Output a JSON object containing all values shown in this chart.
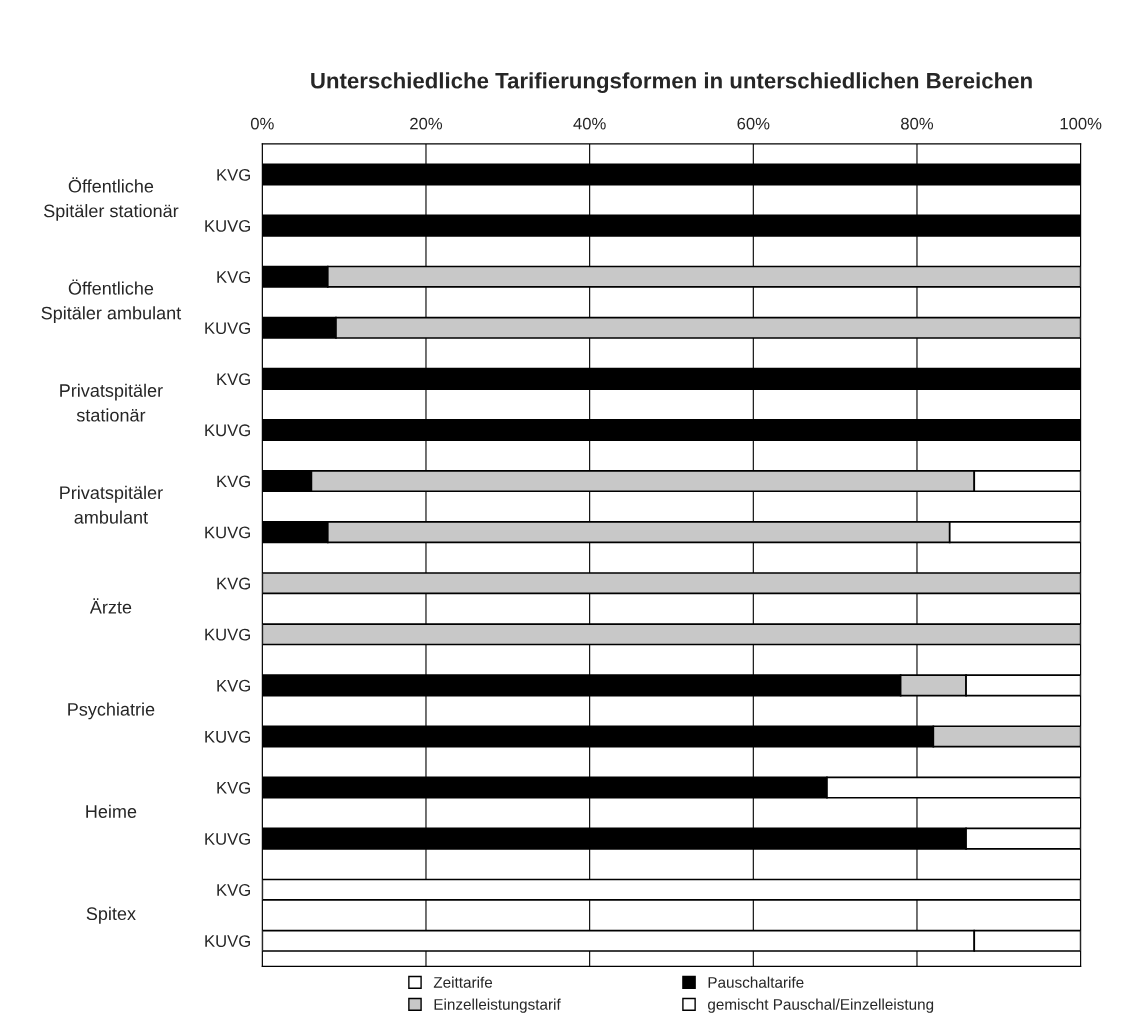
{
  "chart_data": {
    "type": "bar",
    "orientation": "horizontal",
    "stacked": true,
    "title": "Unterschiedliche Tarifierungsformen in unterschiedlichen Bereichen",
    "categories": [
      "KVG",
      "KUVG",
      "KVG",
      "KUVG",
      "KVG",
      "KUVG",
      "KVG",
      "KUVG",
      "KVG",
      "KUVG",
      "KVG",
      "KUVG",
      "KVG",
      "KUVG",
      "KVG",
      "KUVG"
    ],
    "annotations": [
      "Öffentliche\nSpitäler stationär",
      "Öffentliche\nSpitäler ambulant",
      "Privatspitäler\nstationär",
      "Privatspitäler\nambulant",
      "Ärzte",
      "Psychiatrie",
      "Heime",
      "Spitex"
    ],
    "series": [
      {
        "name": "Zeittarife",
        "color": "#ffffff",
        "values": [
          null,
          null,
          null,
          null,
          null,
          null,
          null,
          null,
          null,
          null,
          null,
          null,
          null,
          null,
          100,
          87
        ]
      },
      {
        "name": "Pauschaltarife",
        "color": "#000000",
        "values": [
          100,
          100,
          8,
          9,
          100,
          100,
          6,
          8,
          null,
          null,
          78,
          82,
          69,
          86,
          null,
          null
        ]
      },
      {
        "name": "Einzelleistungstarif",
        "color": "#c8c8c8",
        "values": [
          null,
          null,
          92,
          91,
          null,
          null,
          81,
          76,
          100,
          100,
          8,
          18,
          null,
          null,
          null,
          null
        ]
      },
      {
        "name": "gemischt Pauschal/Einzelleistung",
        "color": "#ffffff",
        "values": [
          null,
          null,
          null,
          null,
          null,
          null,
          13,
          16,
          null,
          null,
          14,
          null,
          31,
          14,
          null,
          13
        ]
      }
    ],
    "xlim": [
      0,
      100
    ],
    "xticks": [
      {
        "value": 0,
        "label": "0%"
      },
      {
        "value": 20,
        "label": "20%"
      },
      {
        "value": 40,
        "label": "40%"
      },
      {
        "value": 60,
        "label": "60%"
      },
      {
        "value": 80,
        "label": "80%"
      },
      {
        "value": 100,
        "label": "100%"
      }
    ],
    "grid": "x",
    "legend": "bottom"
  }
}
